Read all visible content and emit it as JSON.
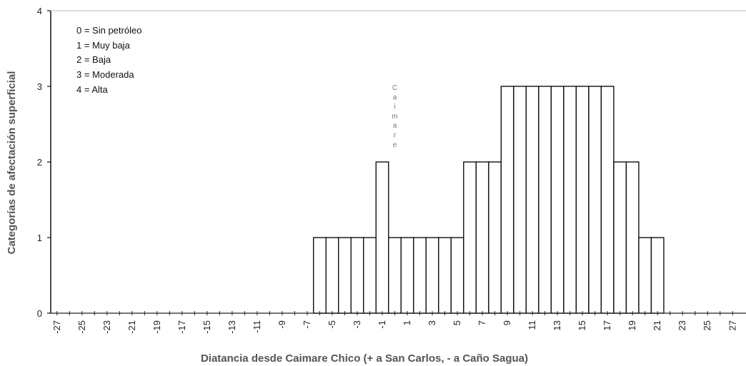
{
  "chart_data": {
    "type": "bar",
    "xlabel": "Diatancia desde Caimare Chico (+ a San Carlos, - a Caño Sagua)",
    "ylabel": "Categorías de afectación superficial",
    "ylim": [
      0,
      4
    ],
    "xlim": [
      -27,
      27
    ],
    "x_tick_labels": [
      "-27",
      "-25",
      "-23",
      "-21",
      "-19",
      "-17",
      "-15",
      "-13",
      "-11",
      "-9",
      "-7",
      "-5",
      "-3",
      "-1",
      "1",
      "3",
      "5",
      "7",
      "9",
      "11",
      "13",
      "15",
      "17",
      "19",
      "21",
      "23",
      "25",
      "27"
    ],
    "y_tick_labels": [
      "0",
      "1",
      "2",
      "3",
      "4"
    ],
    "legend": [
      "0 = Sin petróleo",
      "1 = Muy baja",
      "2 = Baja",
      "3 = Moderada",
      "4 = Alta"
    ],
    "annotation": "Caimare",
    "grid": false,
    "x": [
      -27,
      -26,
      -25,
      -24,
      -23,
      -22,
      -21,
      -20,
      -19,
      -18,
      -17,
      -16,
      -15,
      -14,
      -13,
      -12,
      -11,
      -10,
      -9,
      -8,
      -7,
      -6,
      -5,
      -4,
      -3,
      -2,
      -1,
      0,
      1,
      2,
      3,
      4,
      5,
      6,
      7,
      8,
      9,
      10,
      11,
      12,
      13,
      14,
      15,
      16,
      17,
      18,
      19,
      20,
      21,
      22,
      23,
      24,
      25,
      26,
      27
    ],
    "values": [
      0,
      0,
      0,
      0,
      0,
      0,
      0,
      0,
      0,
      0,
      0,
      0,
      0,
      0,
      0,
      0,
      0,
      0,
      0,
      0,
      0,
      1,
      1,
      1,
      1,
      1,
      2,
      1,
      1,
      1,
      1,
      1,
      1,
      2,
      2,
      2,
      3,
      3,
      3,
      3,
      3,
      3,
      3,
      3,
      3,
      2,
      2,
      1,
      1,
      0,
      0,
      0,
      0,
      0,
      0
    ]
  }
}
